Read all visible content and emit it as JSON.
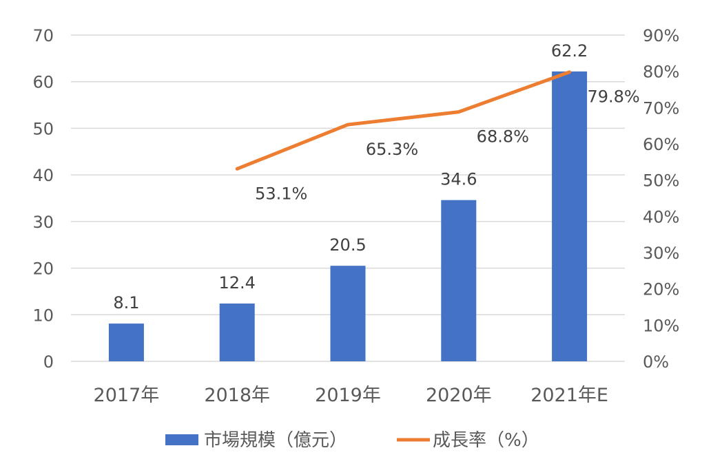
{
  "chart_data": {
    "type": "bar",
    "categories": [
      "2017年",
      "2018年",
      "2019年",
      "2020年",
      "2021年E"
    ],
    "series": [
      {
        "name": "市場規模（億元）",
        "type": "bar",
        "axis": "left",
        "values": [
          8.1,
          12.4,
          20.5,
          34.6,
          62.2
        ],
        "labels": [
          "8.1",
          "12.4",
          "20.5",
          "34.6",
          "62.2"
        ]
      },
      {
        "name": "成長率（%）",
        "type": "line",
        "axis": "right",
        "values": [
          null,
          53.1,
          65.3,
          68.8,
          79.8
        ],
        "labels": [
          "",
          "53.1%",
          "65.3%",
          "68.8%",
          "79.8%"
        ]
      }
    ],
    "y_left": {
      "ylim": [
        0,
        70
      ],
      "ticks": [
        "0",
        "10",
        "20",
        "30",
        "40",
        "50",
        "60",
        "70"
      ]
    },
    "y_right": {
      "ylim": [
        0,
        90
      ],
      "ticks": [
        "0%",
        "10%",
        "20%",
        "30%",
        "40%",
        "50%",
        "60%",
        "70%",
        "80%",
        "90%"
      ]
    },
    "grid": true,
    "legend_position": "bottom",
    "colors": {
      "bar": "#4472C4",
      "line": "#ED7D31",
      "grid": "#D9D9D9"
    }
  }
}
